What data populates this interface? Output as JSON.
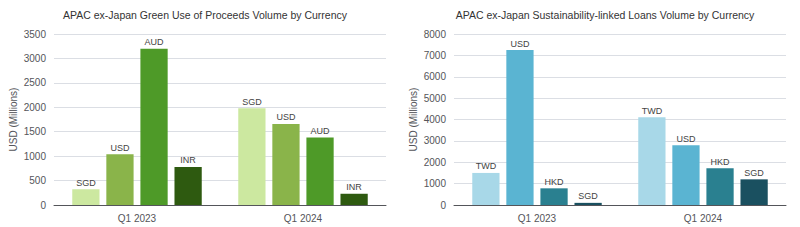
{
  "chart_data": [
    {
      "type": "bar",
      "title": "APAC ex-Japan Green Use of Proceeds Volume by Currency",
      "ylabel": "USD (Millions)",
      "categories": [
        "Q1 2023",
        "Q1 2024"
      ],
      "series": [
        {
          "name": "SGD",
          "color": "#cce8a0",
          "values": [
            320,
            1980
          ]
        },
        {
          "name": "USD",
          "color": "#8ab44a",
          "values": [
            1040,
            1660
          ]
        },
        {
          "name": "AUD",
          "color": "#4e9a28",
          "values": [
            3200,
            1380
          ]
        },
        {
          "name": "INR",
          "color": "#2e5a10",
          "values": [
            780,
            230
          ]
        }
      ],
      "ylim": [
        0,
        3500
      ],
      "yticks": [
        0,
        500,
        1000,
        1500,
        2000,
        2500,
        3000,
        3500
      ],
      "grid": true
    },
    {
      "type": "bar",
      "title": "APAC ex-Japan Sustainability-linked Loans Volume by Currency",
      "ylabel": "USD (Millions)",
      "categories": [
        "Q1 2023",
        "Q1 2024"
      ],
      "series": [
        {
          "name": "TWD",
          "color": "#a8d8e8",
          "values": [
            1500,
            4100
          ]
        },
        {
          "name": "USD",
          "color": "#5ab4d2",
          "values": [
            7250,
            2800
          ]
        },
        {
          "name": "HKD",
          "color": "#2a8090",
          "values": [
            780,
            1720
          ]
        },
        {
          "name": "SGD",
          "color": "#1a5060",
          "values": [
            100,
            1200
          ]
        }
      ],
      "ylim": [
        0,
        8000
      ],
      "yticks": [
        0,
        1000,
        2000,
        3000,
        4000,
        5000,
        6000,
        7000,
        8000
      ],
      "grid": true
    }
  ]
}
